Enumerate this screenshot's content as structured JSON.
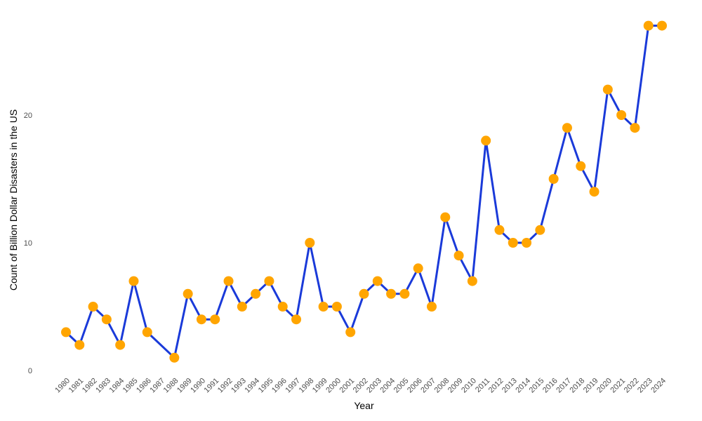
{
  "chart_data": {
    "type": "line",
    "title": "",
    "xlabel": "Year",
    "ylabel": "Count of Billion Dollar Disasters in the US",
    "x": [
      "1980",
      "1981",
      "1982",
      "1983",
      "1984",
      "1985",
      "1986",
      "1987",
      "1988",
      "1989",
      "1990",
      "1991",
      "1992",
      "1993",
      "1994",
      "1995",
      "1996",
      "1997",
      "1998",
      "1999",
      "2000",
      "2001",
      "2002",
      "2003",
      "2004",
      "2005",
      "2006",
      "2007",
      "2008",
      "2009",
      "2010",
      "2011",
      "2012",
      "2013",
      "2014",
      "2015",
      "2016",
      "2017",
      "2018",
      "2019",
      "2020",
      "2021",
      "2022",
      "2023",
      "2024"
    ],
    "y": [
      3,
      2,
      5,
      4,
      2,
      7,
      3,
      null,
      1,
      6,
      4,
      4,
      7,
      5,
      6,
      7,
      5,
      4,
      10,
      5,
      5,
      3,
      6,
      7,
      6,
      6,
      8,
      5,
      12,
      9,
      7,
      18,
      11,
      10,
      10,
      11,
      15,
      19,
      16,
      14,
      22,
      20,
      19,
      27,
      27
    ],
    "ylim": [
      0,
      28
    ],
    "yticks": [
      0,
      10,
      20
    ],
    "grid": false,
    "legend": "none",
    "line_color": "#1a3ad9",
    "marker_color": "#ffa500"
  }
}
